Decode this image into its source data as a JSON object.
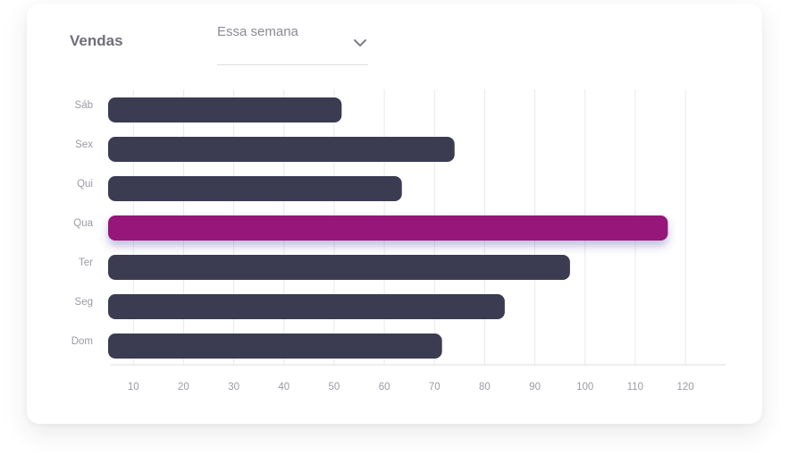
{
  "header": {
    "title": "Vendas",
    "period_select": {
      "value": "Essa semana"
    }
  },
  "colors": {
    "bar": "#3b3c51",
    "highlight": "#96197a",
    "grid": "#e9e9ee",
    "axis": "#dcdce2",
    "label": "#9a9aa3"
  },
  "icons": {
    "select_chevron": "chevron-down-icon"
  },
  "chart_data": {
    "type": "bar",
    "orientation": "horizontal",
    "categories": [
      "Sáb",
      "Sex",
      "Qui",
      "Qua",
      "Ter",
      "Seg",
      "Dom"
    ],
    "values": [
      51.5,
      74,
      63.5,
      116.5,
      97,
      84,
      71.5
    ],
    "highlighted_category": "Qua",
    "xticks": [
      10,
      20,
      30,
      40,
      50,
      60,
      70,
      80,
      90,
      100,
      110,
      120
    ],
    "xlim": [
      5.5,
      128
    ],
    "grid": true,
    "title": "",
    "xlabel": "",
    "ylabel": ""
  }
}
